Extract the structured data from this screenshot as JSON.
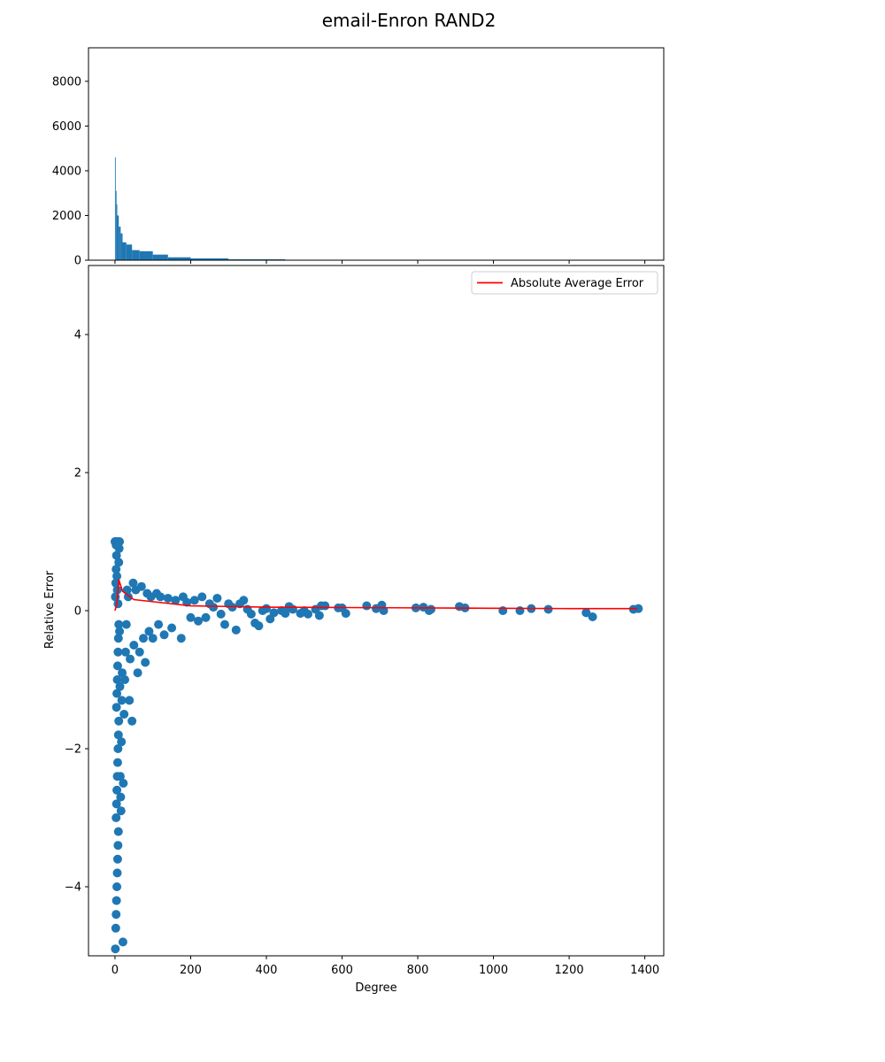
{
  "title": "email-Enron  RAND2",
  "chart_data": [
    {
      "type": "bar",
      "role": "degree-histogram",
      "title": "",
      "xlabel": "",
      "ylabel": "",
      "xlim": [
        -70,
        1450
      ],
      "ylim": [
        0,
        9500
      ],
      "yticks": [
        {
          "value": 0,
          "label": "0"
        },
        {
          "value": 2000,
          "label": "2000"
        },
        {
          "value": 4000,
          "label": "4000"
        },
        {
          "value": 6000,
          "label": "6000"
        },
        {
          "value": 8000,
          "label": "8000"
        }
      ],
      "xticks": [
        0,
        200,
        400,
        600,
        800,
        1000,
        1200,
        1400
      ],
      "xticklabels_visible": false,
      "bars": [
        {
          "x0": 0,
          "x1": 2,
          "value": 4600
        },
        {
          "x0": 2,
          "x1": 4,
          "value": 3100
        },
        {
          "x0": 4,
          "x1": 6,
          "value": 2500
        },
        {
          "x0": 6,
          "x1": 10,
          "value": 2000
        },
        {
          "x0": 10,
          "x1": 15,
          "value": 1500
        },
        {
          "x0": 15,
          "x1": 20,
          "value": 1200
        },
        {
          "x0": 20,
          "x1": 30,
          "value": 800
        },
        {
          "x0": 30,
          "x1": 45,
          "value": 700
        },
        {
          "x0": 45,
          "x1": 65,
          "value": 450
        },
        {
          "x0": 65,
          "x1": 100,
          "value": 400
        },
        {
          "x0": 100,
          "x1": 140,
          "value": 250
        },
        {
          "x0": 140,
          "x1": 200,
          "value": 130
        },
        {
          "x0": 200,
          "x1": 300,
          "value": 80
        },
        {
          "x0": 300,
          "x1": 450,
          "value": 40
        },
        {
          "x0": 450,
          "x1": 646,
          "value": 20
        },
        {
          "x0": 646,
          "x1": 1400,
          "value": 4
        }
      ],
      "color": "#1f77b4"
    },
    {
      "type": "scatter",
      "role": "relative-error",
      "title": "",
      "xlabel": "Degree",
      "ylabel": "Relative Error",
      "xlim": [
        -70,
        1450
      ],
      "ylim": [
        -5,
        5
      ],
      "xticks": [
        {
          "value": 0,
          "label": "0"
        },
        {
          "value": 200,
          "label": "200"
        },
        {
          "value": 400,
          "label": "400"
        },
        {
          "value": 600,
          "label": "600"
        },
        {
          "value": 800,
          "label": "800"
        },
        {
          "value": 1000,
          "label": "1000"
        },
        {
          "value": 1200,
          "label": "1200"
        },
        {
          "value": 1400,
          "label": "1400"
        }
      ],
      "yticks": [
        {
          "value": -4,
          "label": "−4"
        },
        {
          "value": -2,
          "label": "−2"
        },
        {
          "value": 0,
          "label": "0"
        },
        {
          "value": 2,
          "label": "2"
        },
        {
          "value": 4,
          "label": "4"
        }
      ],
      "grid": false,
      "legend_position": "top-right",
      "point_color": "#1f77b4",
      "points": [
        [
          0,
          1.0
        ],
        [
          2,
          1.0
        ],
        [
          3,
          0.95
        ],
        [
          5,
          1.0
        ],
        [
          7,
          1.0
        ],
        [
          9,
          0.98
        ],
        [
          12,
          1.0
        ],
        [
          1,
          -4.9
        ],
        [
          2,
          -4.6
        ],
        [
          3,
          -4.4
        ],
        [
          4,
          -4.2
        ],
        [
          5,
          -4.0
        ],
        [
          6,
          -3.8
        ],
        [
          7,
          -3.6
        ],
        [
          8,
          -3.4
        ],
        [
          9,
          -3.2
        ],
        [
          3,
          -3.0
        ],
        [
          4,
          -2.8
        ],
        [
          5,
          -2.6
        ],
        [
          6,
          -2.4
        ],
        [
          7,
          -2.2
        ],
        [
          8,
          -2.0
        ],
        [
          9,
          -1.8
        ],
        [
          10,
          -1.6
        ],
        [
          4,
          -1.4
        ],
        [
          5,
          -1.2
        ],
        [
          6,
          -1.0
        ],
        [
          7,
          -0.8
        ],
        [
          8,
          -0.6
        ],
        [
          9,
          -0.4
        ],
        [
          10,
          -0.2
        ],
        [
          1,
          0.2
        ],
        [
          2,
          0.4
        ],
        [
          3,
          0.6
        ],
        [
          4,
          0.8
        ],
        [
          5,
          0.5
        ],
        [
          6,
          0.3
        ],
        [
          8,
          0.1
        ],
        [
          10,
          0.7
        ],
        [
          11,
          0.9
        ],
        [
          12,
          -0.3
        ],
        [
          13,
          -1.1
        ],
        [
          14,
          -2.4
        ],
        [
          15,
          -2.7
        ],
        [
          16,
          -2.9
        ],
        [
          17,
          -1.9
        ],
        [
          18,
          -1.3
        ],
        [
          19,
          -0.9
        ],
        [
          21,
          -4.8
        ],
        [
          22,
          -2.5
        ],
        [
          24,
          -1.5
        ],
        [
          26,
          -1.0
        ],
        [
          28,
          -0.6
        ],
        [
          30,
          -0.2
        ],
        [
          32,
          0.3
        ],
        [
          35,
          0.2
        ],
        [
          38,
          -1.3
        ],
        [
          40,
          -0.7
        ],
        [
          45,
          -1.6
        ],
        [
          48,
          0.4
        ],
        [
          50,
          -0.5
        ],
        [
          55,
          0.3
        ],
        [
          60,
          -0.9
        ],
        [
          65,
          -0.6
        ],
        [
          70,
          0.35
        ],
        [
          75,
          -0.4
        ],
        [
          80,
          -0.75
        ],
        [
          85,
          0.25
        ],
        [
          90,
          -0.3
        ],
        [
          95,
          0.2
        ],
        [
          100,
          -0.4
        ],
        [
          110,
          0.25
        ],
        [
          115,
          -0.2
        ],
        [
          120,
          0.2
        ],
        [
          130,
          -0.35
        ],
        [
          140,
          0.18
        ],
        [
          150,
          -0.25
        ],
        [
          160,
          0.15
        ],
        [
          175,
          -0.4
        ],
        [
          180,
          0.2
        ],
        [
          190,
          0.12
        ],
        [
          200,
          -0.1
        ],
        [
          210,
          0.15
        ],
        [
          220,
          -0.15
        ],
        [
          230,
          0.2
        ],
        [
          240,
          -0.1
        ],
        [
          250,
          0.1
        ],
        [
          260,
          0.05
        ],
        [
          270,
          0.18
        ],
        [
          280,
          -0.05
        ],
        [
          290,
          -0.2
        ],
        [
          300,
          0.1
        ],
        [
          310,
          0.05
        ],
        [
          320,
          -0.28
        ],
        [
          330,
          0.1
        ],
        [
          340,
          0.15
        ],
        [
          350,
          0.02
        ],
        [
          360,
          -0.05
        ],
        [
          370,
          -0.18
        ],
        [
          380,
          -0.22
        ],
        [
          390,
          0.0
        ],
        [
          400,
          0.03
        ],
        [
          410,
          -0.12
        ],
        [
          420,
          -0.03
        ],
        [
          440,
          0.0
        ],
        [
          450,
          -0.04
        ],
        [
          460,
          0.06
        ],
        [
          470,
          0.02
        ],
        [
          490,
          -0.04
        ],
        [
          500,
          0.0
        ],
        [
          510,
          -0.05
        ],
        [
          530,
          0.02
        ],
        [
          540,
          -0.07
        ],
        [
          545,
          0.07
        ],
        [
          555,
          0.07
        ],
        [
          590,
          0.04
        ],
        [
          600,
          0.04
        ],
        [
          610,
          -0.04
        ],
        [
          665,
          0.07
        ],
        [
          690,
          0.03
        ],
        [
          705,
          0.08
        ],
        [
          710,
          0.0
        ],
        [
          795,
          0.04
        ],
        [
          815,
          0.05
        ],
        [
          830,
          0.0
        ],
        [
          835,
          0.02
        ],
        [
          910,
          0.06
        ],
        [
          925,
          0.04
        ],
        [
          1025,
          0.0
        ],
        [
          1070,
          0.0
        ],
        [
          1100,
          0.03
        ],
        [
          1145,
          0.02
        ],
        [
          1245,
          -0.03
        ],
        [
          1262,
          -0.09
        ],
        [
          1370,
          0.02
        ],
        [
          1383,
          0.03
        ]
      ],
      "series": [
        {
          "name": "Absolute Average Error",
          "color": "#ff0000",
          "x": [
            0,
            5,
            10,
            20,
            50,
            100,
            200,
            400,
            600,
            800,
            1000,
            1200,
            1380
          ],
          "y": [
            0.0,
            0.1,
            0.45,
            0.28,
            0.16,
            0.13,
            0.07,
            0.05,
            0.045,
            0.04,
            0.035,
            0.03,
            0.03
          ]
        }
      ]
    }
  ]
}
